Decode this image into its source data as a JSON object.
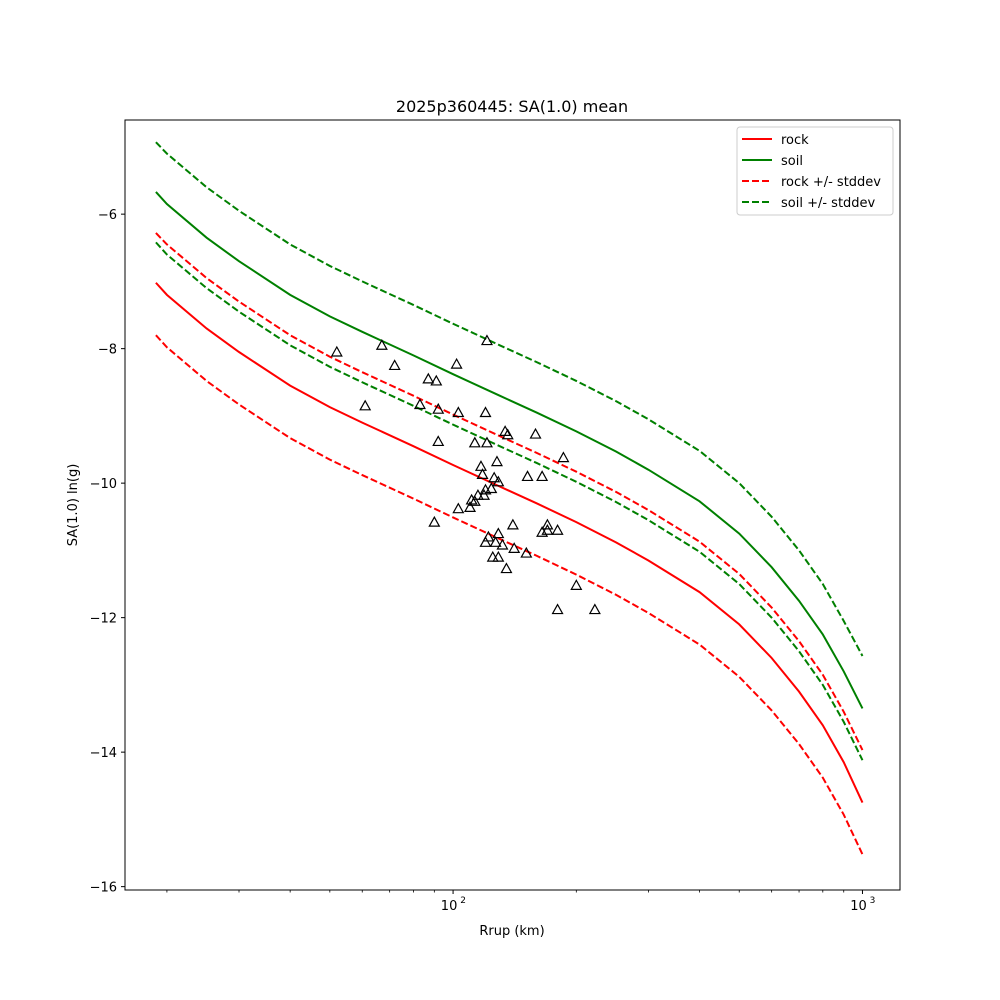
{
  "chart_data": {
    "type": "line",
    "title": "2025p360445: SA(1.0) mean",
    "xlabel": "Rrup (km)",
    "ylabel": "SA(1.0) ln(g)",
    "xscale": "log",
    "xlim": [
      15.8,
      1235
    ],
    "ylim": [
      -16.05,
      -4.6
    ],
    "yticks": [
      -16,
      -14,
      -12,
      -10,
      -8,
      -6
    ],
    "ytick_labels": [
      "−16",
      "−14",
      "−12",
      "−10",
      "−8",
      "−6"
    ],
    "xticks_major": [
      100,
      1000
    ],
    "xtick_labels": [
      {
        "base": "10",
        "exp": "2"
      },
      {
        "base": "10",
        "exp": "3"
      }
    ],
    "xticks_minor": [
      20,
      30,
      40,
      50,
      60,
      70,
      80,
      90,
      200,
      300,
      400,
      500,
      600,
      700,
      800,
      900
    ],
    "grid": false,
    "legend_position": "top-right",
    "colors": {
      "rock": "#ff0000",
      "soil": "#008000",
      "points": "#000000"
    },
    "x": [
      18.8,
      20,
      25,
      30,
      40,
      50,
      60,
      80,
      100,
      130,
      160,
      200,
      250,
      300,
      400,
      500,
      600,
      700,
      800,
      900,
      1000
    ],
    "series": [
      {
        "name": "rock",
        "color": "#ff0000",
        "dash": "solid",
        "values": [
          -7.02,
          -7.2,
          -7.7,
          -8.05,
          -8.55,
          -8.87,
          -9.1,
          -9.45,
          -9.73,
          -10.05,
          -10.3,
          -10.58,
          -10.88,
          -11.15,
          -11.62,
          -12.1,
          -12.6,
          -13.1,
          -13.6,
          -14.15,
          -14.75
        ]
      },
      {
        "name": "soil",
        "color": "#008000",
        "dash": "solid",
        "values": [
          -5.67,
          -5.85,
          -6.35,
          -6.7,
          -7.2,
          -7.52,
          -7.75,
          -8.1,
          -8.38,
          -8.7,
          -8.95,
          -9.23,
          -9.53,
          -9.8,
          -10.27,
          -10.75,
          -11.25,
          -11.75,
          -12.25,
          -12.8,
          -13.35
        ]
      },
      {
        "name": "rock +/- stddev",
        "color": "#ff0000",
        "dash": "dashed",
        "values": [
          -6.28,
          -6.45,
          -6.95,
          -7.3,
          -7.8,
          -8.12,
          -8.35,
          -8.7,
          -8.98,
          -9.3,
          -9.55,
          -9.83,
          -10.13,
          -10.4,
          -10.87,
          -11.35,
          -11.85,
          -12.35,
          -12.85,
          -13.4,
          -13.97
        ]
      },
      {
        "name": "",
        "color": "#ff0000",
        "dash": "dashed",
        "values": [
          -7.8,
          -7.98,
          -8.48,
          -8.83,
          -9.33,
          -9.65,
          -9.88,
          -10.23,
          -10.51,
          -10.83,
          -11.08,
          -11.36,
          -11.66,
          -11.93,
          -12.4,
          -12.88,
          -13.38,
          -13.88,
          -14.38,
          -14.93,
          -15.52
        ]
      },
      {
        "name": "soil +/- stddev",
        "color": "#008000",
        "dash": "dashed",
        "values": [
          -4.93,
          -5.1,
          -5.6,
          -5.95,
          -6.45,
          -6.77,
          -7.0,
          -7.35,
          -7.63,
          -7.95,
          -8.2,
          -8.48,
          -8.78,
          -9.05,
          -9.52,
          -10.0,
          -10.5,
          -11.0,
          -11.5,
          -12.05,
          -12.57
        ]
      },
      {
        "name": "",
        "color": "#008000",
        "dash": "dashed",
        "values": [
          -6.42,
          -6.6,
          -7.1,
          -7.45,
          -7.95,
          -8.27,
          -8.5,
          -8.85,
          -9.13,
          -9.45,
          -9.7,
          -9.98,
          -10.28,
          -10.55,
          -11.02,
          -11.5,
          -12.0,
          -12.5,
          -13.0,
          -13.55,
          -14.12
        ]
      }
    ],
    "observations": [
      {
        "x": 52,
        "y": -8.05
      },
      {
        "x": 67,
        "y": -7.95
      },
      {
        "x": 72,
        "y": -8.25
      },
      {
        "x": 61,
        "y": -8.85
      },
      {
        "x": 87,
        "y": -8.45
      },
      {
        "x": 91,
        "y": -8.48
      },
      {
        "x": 102,
        "y": -8.23
      },
      {
        "x": 121,
        "y": -7.88
      },
      {
        "x": 83,
        "y": -8.83
      },
      {
        "x": 92,
        "y": -8.9
      },
      {
        "x": 103,
        "y": -8.95
      },
      {
        "x": 120,
        "y": -8.95
      },
      {
        "x": 92,
        "y": -9.38
      },
      {
        "x": 113,
        "y": -9.4
      },
      {
        "x": 121,
        "y": -9.4
      },
      {
        "x": 134,
        "y": -9.23
      },
      {
        "x": 136,
        "y": -9.28
      },
      {
        "x": 159,
        "y": -9.27
      },
      {
        "x": 186,
        "y": -9.62
      },
      {
        "x": 128,
        "y": -9.68
      },
      {
        "x": 117,
        "y": -9.75
      },
      {
        "x": 118,
        "y": -9.87
      },
      {
        "x": 126,
        "y": -9.92
      },
      {
        "x": 129,
        "y": -9.98
      },
      {
        "x": 152,
        "y": -9.9
      },
      {
        "x": 165,
        "y": -9.9
      },
      {
        "x": 120,
        "y": -10.1
      },
      {
        "x": 124,
        "y": -10.08
      },
      {
        "x": 115,
        "y": -10.18
      },
      {
        "x": 119,
        "y": -10.18
      },
      {
        "x": 113,
        "y": -10.27
      },
      {
        "x": 111,
        "y": -10.25
      },
      {
        "x": 103,
        "y": -10.38
      },
      {
        "x": 110,
        "y": -10.36
      },
      {
        "x": 140,
        "y": -10.62
      },
      {
        "x": 170,
        "y": -10.62
      },
      {
        "x": 170,
        "y": -10.7
      },
      {
        "x": 165,
        "y": -10.73
      },
      {
        "x": 180,
        "y": -10.7
      },
      {
        "x": 90,
        "y": -10.58
      },
      {
        "x": 129,
        "y": -10.75
      },
      {
        "x": 122,
        "y": -10.8
      },
      {
        "x": 120,
        "y": -10.88
      },
      {
        "x": 127,
        "y": -10.88
      },
      {
        "x": 132,
        "y": -10.92
      },
      {
        "x": 141,
        "y": -10.97
      },
      {
        "x": 151,
        "y": -11.04
      },
      {
        "x": 125,
        "y": -11.1
      },
      {
        "x": 129,
        "y": -11.1
      },
      {
        "x": 135,
        "y": -11.27
      },
      {
        "x": 200,
        "y": -11.52
      },
      {
        "x": 180,
        "y": -11.88
      },
      {
        "x": 222,
        "y": -11.88
      }
    ]
  }
}
